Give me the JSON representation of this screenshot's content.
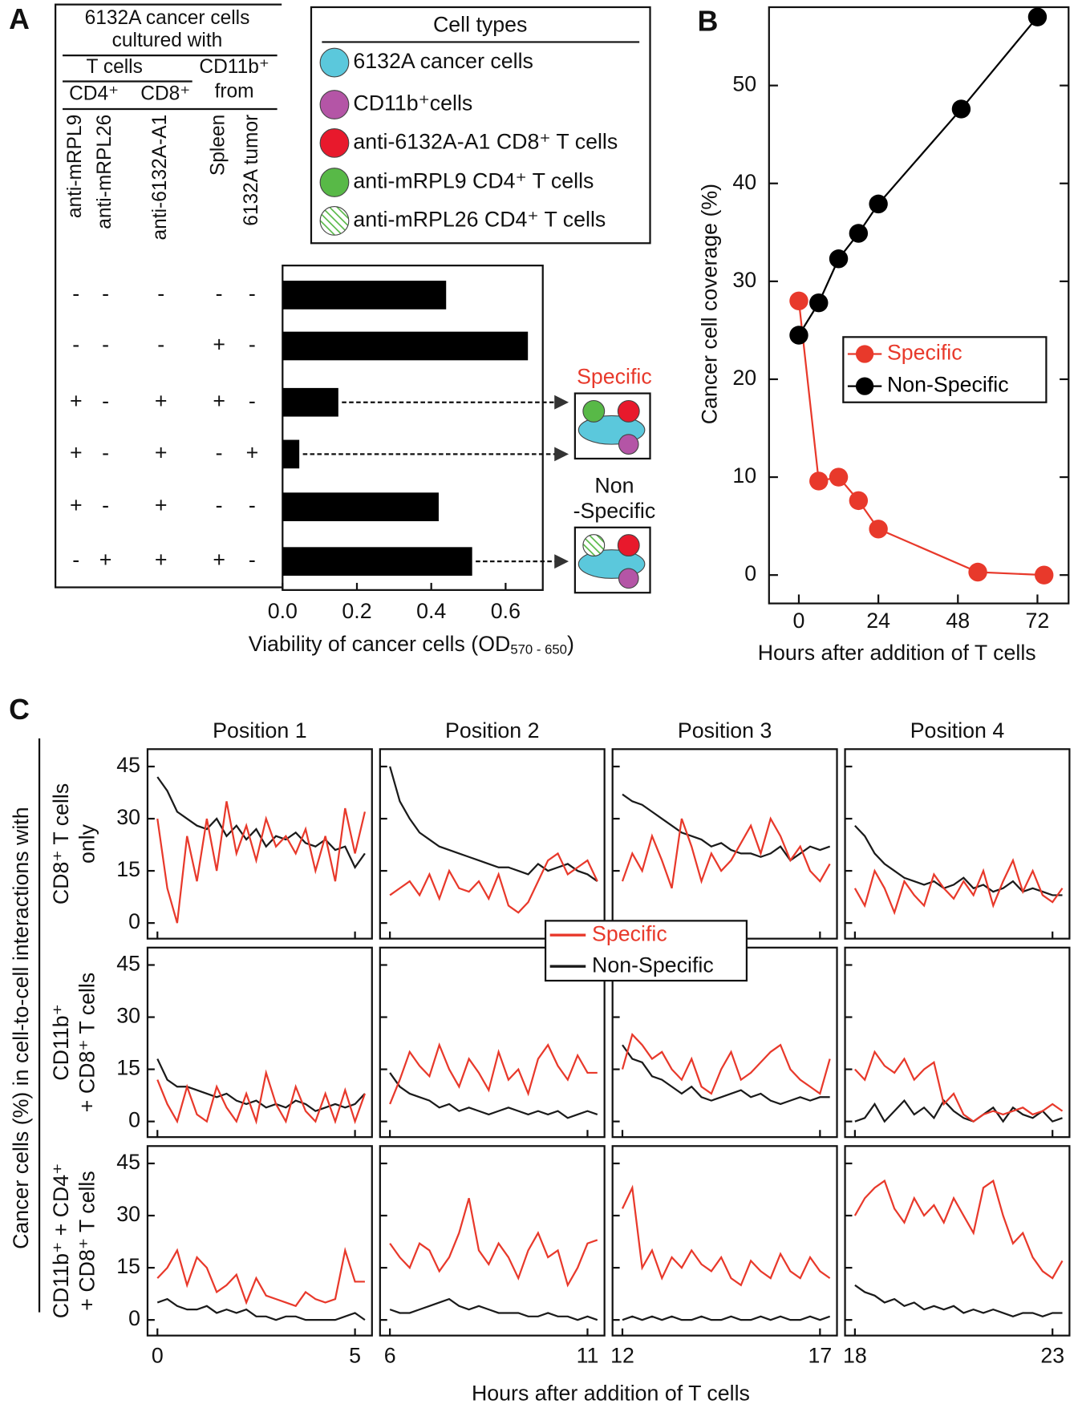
{
  "panel_labels": [
    "A",
    "B",
    "C"
  ],
  "chart_data": [
    {
      "type": "hbar",
      "table": {
        "title": [
          "6132A cancer cells",
          "cultured with"
        ],
        "t_cells": "T cells",
        "cd4": "CD4⁺",
        "cd8": "CD8⁺",
        "cd11b": [
          "CD11b⁺",
          "from"
        ],
        "columns": [
          "anti-mRPL9",
          "anti-mRPL26",
          "anti-6132A-A1",
          "Spleen",
          "6132A tumor"
        ]
      },
      "conditions": [
        [
          "-",
          "-",
          "-",
          "-",
          "-"
        ],
        [
          "-",
          "-",
          "-",
          "+",
          "-"
        ],
        [
          "+",
          "-",
          "+",
          "+",
          "-"
        ],
        [
          "+",
          "-",
          "+",
          "-",
          "+"
        ],
        [
          "+",
          "-",
          "+",
          "-",
          "-"
        ],
        [
          "-",
          "+",
          "+",
          "+",
          "-"
        ]
      ],
      "values": [
        0.44,
        0.66,
        0.15,
        0.045,
        0.42,
        0.51
      ],
      "color": "#000000",
      "xlim": [
        0,
        0.7
      ],
      "xticks": [
        {
          "value": 0,
          "label": "0.0"
        },
        0.2,
        0.4,
        0.6
      ],
      "xlabel": [
        "Viability of cancer cells (OD",
        "570 - 650",
        ")"
      ],
      "cell_types": {
        "title": "Cell types",
        "items": [
          {
            "name": "6132A cancer cells",
            "color": "#5bc8dc"
          },
          {
            "name": "CD11b⁺cells",
            "color": "#b455a6"
          },
          {
            "name": "anti-6132A-A1 CD8⁺ T cells",
            "color": "#e8192c"
          },
          {
            "name": "anti-mRPL9 CD4⁺ T cells",
            "color": "#58b947"
          },
          {
            "name": "anti-mRPL26 CD4⁺ T cells",
            "color": "#58b947",
            "hatched": true
          }
        ]
      },
      "annotations": {
        "specific": "Specific",
        "non_specific": [
          "Non",
          "-Specific"
        ],
        "specific_color": "#e8392b"
      }
    },
    {
      "type": "line",
      "xlabel": "Hours after addition of T cells",
      "ylabel": "Cancer cell coverage (%)",
      "xlim": [
        -9,
        81.4
      ],
      "ylim": [
        -2.9,
        58
      ],
      "xticks": [
        0,
        24,
        48,
        72
      ],
      "yticks": [
        0,
        10,
        20,
        30,
        40,
        50
      ],
      "legend": "right",
      "series": [
        {
          "name": "Specific",
          "color": "#e8392b",
          "x": [
            0,
            6,
            12,
            18,
            24,
            54,
            74
          ],
          "values": [
            28,
            9.6,
            10,
            7.6,
            4.7,
            0.3,
            0
          ]
        },
        {
          "name": "Non-Specific",
          "color": "#000000",
          "x": [
            0,
            6,
            12,
            18,
            24,
            49,
            72
          ],
          "values": [
            24.5,
            27.8,
            32.3,
            34.9,
            37.9,
            47.6,
            57
          ]
        }
      ]
    },
    {
      "type": "line-grid",
      "ylabel": "Cancer cells (%) in cell-to-cell interactions with",
      "xlabel": "Hours after addition of T cells",
      "ylim": [
        -4.5,
        50
      ],
      "yticks": [
        0,
        15,
        30,
        45
      ],
      "legend": "top-center",
      "series": [
        {
          "name": "Specific",
          "color": "#e8392b"
        },
        {
          "name": "Non-Specific",
          "color": "#1a1a1a"
        }
      ],
      "columns": [
        {
          "title": "Position 1",
          "xlim": [
            -0.25,
            5.43
          ],
          "xticks": [
            0,
            5
          ],
          "x": [
            0,
            0.25,
            0.5,
            0.75,
            1,
            1.25,
            1.5,
            1.75,
            2,
            2.25,
            2.5,
            2.75,
            3,
            3.25,
            3.5,
            3.75,
            4,
            4.25,
            4.5,
            4.75,
            5,
            5.25
          ]
        },
        {
          "title": "Position 2",
          "xlim": [
            5.75,
            11.43
          ],
          "xticks": [
            6,
            11
          ],
          "x": [
            6,
            6.25,
            6.5,
            6.75,
            7,
            7.25,
            7.5,
            7.75,
            8,
            8.25,
            8.5,
            8.75,
            9,
            9.25,
            9.5,
            9.75,
            10,
            10.25,
            10.5,
            10.75,
            11,
            11.25
          ]
        },
        {
          "title": "Position 3",
          "xlim": [
            11.75,
            17.43
          ],
          "xticks": [
            12,
            17
          ],
          "x": [
            12,
            12.25,
            12.5,
            12.75,
            13,
            13.25,
            13.5,
            13.75,
            14,
            14.25,
            14.5,
            14.75,
            15,
            15.25,
            15.5,
            15.75,
            16,
            16.25,
            16.5,
            16.75,
            17,
            17.25
          ]
        },
        {
          "title": "Position 4",
          "xlim": [
            17.75,
            23.43
          ],
          "xticks": [
            18,
            23
          ],
          "x": [
            18,
            18.25,
            18.5,
            18.75,
            19,
            19.25,
            19.5,
            19.75,
            20,
            20.25,
            20.5,
            20.75,
            21,
            21.25,
            21.5,
            21.75,
            22,
            22.25,
            22.5,
            22.75,
            23,
            23.25
          ]
        }
      ],
      "rows": [
        {
          "title": [
            "CD8⁺ T cells",
            "only"
          ],
          "panels": [
            [
              [
                30,
                10,
                0,
                25,
                12,
                30,
                15,
                35,
                20,
                28,
                18,
                30,
                22,
                25,
                20,
                27,
                15,
                25,
                12,
                33,
                20,
                32
              ],
              [
                42,
                38,
                32,
                30,
                28,
                27,
                30,
                25,
                28,
                24,
                27,
                22,
                25,
                24,
                26,
                23,
                22,
                24,
                21,
                22,
                16,
                20
              ]
            ],
            [
              [
                8,
                10,
                12,
                8,
                14,
                7,
                15,
                10,
                9,
                12,
                7,
                14,
                5,
                3,
                6,
                12,
                18,
                20,
                14,
                16,
                18,
                12
              ],
              [
                45,
                35,
                30,
                26,
                24,
                22,
                21,
                20,
                19,
                18,
                17,
                16,
                16,
                15,
                14,
                17,
                15,
                16,
                17,
                15,
                14,
                12
              ]
            ],
            [
              [
                12,
                20,
                15,
                25,
                18,
                10,
                30,
                22,
                12,
                20,
                15,
                18,
                23,
                28,
                20,
                30,
                25,
                18,
                22,
                15,
                12,
                17
              ],
              [
                37,
                35,
                34,
                32,
                30,
                28,
                26,
                25,
                24,
                22,
                23,
                21,
                20,
                20,
                19,
                20,
                22,
                18,
                20,
                22,
                21,
                22
              ]
            ],
            [
              [
                10,
                5,
                15,
                10,
                3,
                12,
                8,
                5,
                14,
                10,
                7,
                12,
                8,
                15,
                5,
                12,
                18,
                9,
                15,
                8,
                6,
                10
              ],
              [
                28,
                25,
                20,
                17,
                15,
                13,
                12,
                11,
                12,
                10,
                11,
                13,
                10,
                11,
                9,
                10,
                12,
                9,
                10,
                9,
                8,
                8
              ]
            ]
          ]
        },
        {
          "title": [
            "CD11b⁺",
            "+ CD8⁺ T cells"
          ],
          "panels": [
            [
              [
                12,
                5,
                0,
                10,
                2,
                0,
                10,
                4,
                0,
                8,
                0,
                14,
                5,
                0,
                10,
                3,
                0,
                8,
                0,
                9,
                0,
                8
              ],
              [
                18,
                12,
                10,
                10,
                9,
                8,
                7,
                8,
                6,
                5,
                6,
                4,
                5,
                4,
                6,
                5,
                3,
                4,
                5,
                4,
                5,
                8
              ]
            ],
            [
              [
                5,
                12,
                20,
                16,
                13,
                22,
                15,
                10,
                18,
                14,
                9,
                20,
                12,
                15,
                8,
                18,
                22,
                16,
                12,
                19,
                14,
                14
              ],
              [
                14,
                10,
                8,
                7,
                6,
                4,
                5,
                3,
                4,
                3,
                2,
                3,
                4,
                3,
                2,
                3,
                2,
                3,
                1,
                2,
                3,
                2
              ]
            ],
            [
              [
                15,
                25,
                22,
                18,
                20,
                15,
                12,
                18,
                10,
                8,
                15,
                20,
                12,
                14,
                17,
                20,
                22,
                15,
                12,
                10,
                8,
                18
              ],
              [
                22,
                18,
                17,
                13,
                12,
                10,
                8,
                10,
                7,
                6,
                7,
                8,
                9,
                7,
                8,
                6,
                5,
                6,
                7,
                6,
                7,
                7
              ]
            ],
            [
              [
                15,
                12,
                20,
                16,
                14,
                18,
                12,
                15,
                17,
                5,
                8,
                2,
                0,
                2,
                3,
                2,
                3,
                4,
                2,
                3,
                5,
                3
              ],
              [
                0,
                1,
                5,
                0,
                3,
                6,
                2,
                4,
                1,
                6,
                3,
                1,
                0,
                2,
                4,
                0,
                4,
                2,
                1,
                3,
                0,
                1
              ]
            ]
          ]
        },
        {
          "title": [
            "CD11b⁺ + CD4⁺",
            "+ CD8⁺ T cells"
          ],
          "panels": [
            [
              [
                12,
                15,
                20,
                10,
                18,
                15,
                8,
                10,
                13,
                5,
                12,
                7,
                6,
                5,
                4,
                8,
                6,
                5,
                6,
                20,
                11,
                11
              ],
              [
                5,
                6,
                4,
                3,
                3,
                4,
                2,
                3,
                2,
                3,
                1,
                1,
                0,
                1,
                1,
                0,
                0,
                0,
                0,
                1,
                2,
                0
              ]
            ],
            [
              [
                22,
                18,
                15,
                22,
                20,
                14,
                18,
                25,
                35,
                20,
                16,
                22,
                18,
                12,
                20,
                25,
                18,
                20,
                10,
                15,
                22,
                23
              ],
              [
                3,
                2,
                2,
                3,
                4,
                5,
                6,
                4,
                3,
                4,
                3,
                2,
                2,
                2,
                1,
                1,
                2,
                1,
                1,
                0,
                1,
                0
              ]
            ],
            [
              [
                32,
                38,
                15,
                20,
                12,
                18,
                15,
                20,
                16,
                14,
                18,
                12,
                10,
                17,
                14,
                12,
                19,
                14,
                12,
                18,
                14,
                12
              ],
              [
                0,
                1,
                0,
                1,
                0,
                1,
                0,
                0,
                1,
                0,
                0,
                1,
                0,
                0,
                1,
                0,
                1,
                0,
                0,
                1,
                0,
                1
              ]
            ],
            [
              [
                30,
                35,
                38,
                40,
                32,
                28,
                35,
                30,
                33,
                28,
                35,
                30,
                25,
                38,
                40,
                30,
                22,
                25,
                18,
                14,
                12,
                17
              ],
              [
                10,
                8,
                7,
                5,
                6,
                4,
                5,
                3,
                4,
                3,
                4,
                2,
                3,
                2,
                3,
                2,
                1,
                2,
                2,
                1,
                2,
                2
              ]
            ]
          ]
        }
      ]
    }
  ]
}
